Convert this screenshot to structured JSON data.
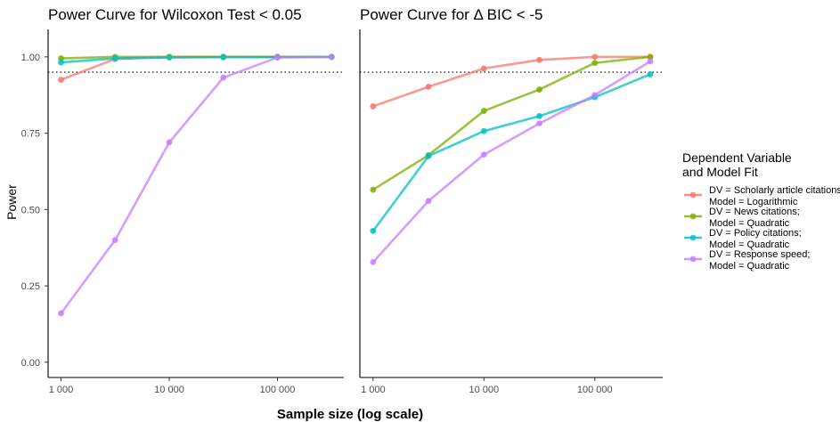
{
  "chart_data": [
    {
      "type": "line",
      "title": "Power Curve for Wilcoxon Test < 0.05",
      "xlabel": "Sample size (log scale)",
      "ylabel": "Power",
      "x_scale": "log10",
      "xlim": [
        760,
        410000
      ],
      "ylim": [
        -0.05,
        1.09
      ],
      "x_ticks": [
        1000,
        10000,
        100000
      ],
      "x_tick_labels": [
        "1 000",
        "10 000",
        "100 000"
      ],
      "y_ticks": [
        0,
        0.25,
        0.5,
        0.75,
        1.0
      ],
      "y_tick_labels": [
        "0.00",
        "0.25",
        "0.50",
        "0.75",
        "1.00"
      ],
      "reference_line_y": 0.95,
      "grid": false,
      "x": [
        1000,
        3162,
        10000,
        31623,
        100000,
        316228
      ],
      "series": [
        {
          "name": "DV = Scholarly article citations;\nModel = Logarithmic",
          "values": [
            0.925,
            0.993,
            1.0,
            1.0,
            1.0,
            1.0
          ]
        },
        {
          "name": "DV = News citations;\nModel = Quadratic",
          "values": [
            0.995,
            1.0,
            1.0,
            1.0,
            1.0,
            1.0
          ]
        },
        {
          "name": "DV = Policy citations;\nModel = Quadratic",
          "values": [
            0.982,
            0.995,
            0.998,
            0.999,
            0.999,
            1.0
          ]
        },
        {
          "name": "DV = Response speed;\nModel = Quadratic",
          "values": [
            0.16,
            0.4,
            0.72,
            0.932,
            0.998,
            1.0
          ]
        }
      ]
    },
    {
      "type": "line",
      "title": "Power Curve for Δ BIC < -5",
      "xlabel": "Sample size (log scale)",
      "ylabel": "Power",
      "x_scale": "log10",
      "xlim": [
        760,
        410000
      ],
      "ylim": [
        -0.05,
        1.09
      ],
      "x_ticks": [
        1000,
        10000,
        100000
      ],
      "x_tick_labels": [
        "1 000",
        "10 000",
        "100 000"
      ],
      "reference_line_y": 0.95,
      "grid": false,
      "x": [
        1000,
        3162,
        10000,
        31623,
        100000,
        316228
      ],
      "series": [
        {
          "name": "DV = Scholarly article citations;\nModel = Logarithmic",
          "values": [
            0.838,
            0.902,
            0.962,
            0.99,
            1.0,
            1.0
          ]
        },
        {
          "name": "DV = News citations;\nModel = Quadratic",
          "values": [
            0.565,
            0.678,
            0.823,
            0.893,
            0.98,
            1.0
          ]
        },
        {
          "name": "DV = Policy citations;\nModel = Quadratic",
          "values": [
            0.43,
            0.675,
            0.757,
            0.806,
            0.868,
            0.943
          ]
        },
        {
          "name": "DV = Response speed;\nModel = Quadratic",
          "values": [
            0.328,
            0.528,
            0.68,
            0.782,
            0.875,
            0.985
          ]
        }
      ]
    }
  ],
  "legend": {
    "title_line1": "Dependent Variable",
    "title_line2": "and Model Fit",
    "placement": "right",
    "items": [
      {
        "line1": "DV = Scholarly article citations;",
        "line2": "Model = Logarithmic",
        "color": "#F8766D"
      },
      {
        "line1": "DV = News citations;",
        "line2": "Model = Quadratic",
        "color": "#7CAE00"
      },
      {
        "line1": "DV = Policy citations;",
        "line2": "Model = Quadratic",
        "color": "#00BFC4"
      },
      {
        "line1": "DV = Response speed;",
        "line2": "Model = Quadratic",
        "color": "#C77CFF"
      }
    ]
  },
  "colors": [
    "#F8766D",
    "#7CAE00",
    "#00BFC4",
    "#C77CFF"
  ]
}
